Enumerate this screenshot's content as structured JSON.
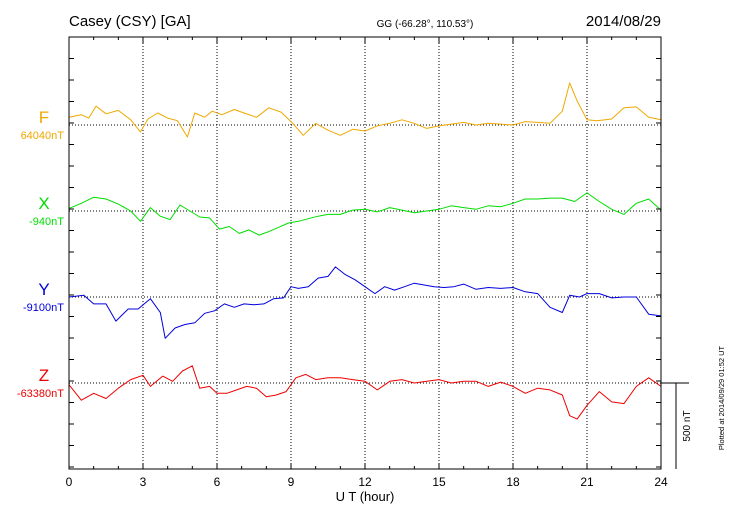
{
  "header": {
    "station": "Casey (CSY)  [GA]",
    "coords": "GG (-66.28°, 110.53°)",
    "date": "2014/08/29"
  },
  "footer": {
    "plotted": "Plotted at 2014/09/29 01:52 UT"
  },
  "chart_data": {
    "type": "line",
    "title": "Casey (CSY)  [GA]",
    "xlabel": "U T (hour)",
    "x_ticks": [
      "0",
      "3",
      "6",
      "9",
      "12",
      "15",
      "18",
      "21",
      "24"
    ],
    "xlim": [
      0,
      24
    ],
    "grid": true,
    "scale_bar": {
      "label": "500 nT",
      "nT": 500
    },
    "series": [
      {
        "name": "F",
        "baseline_label": "64040nT",
        "baseline_nT": 64040,
        "color": "#f0a800",
        "x": [
          0,
          0.5,
          0.8,
          1.1,
          1.5,
          2,
          2.5,
          2.9,
          3.2,
          3.6,
          4,
          4.4,
          4.8,
          5.1,
          5.5,
          5.8,
          6.2,
          6.7,
          7.1,
          7.6,
          8.1,
          8.6,
          9,
          9.5,
          10,
          10.5,
          11,
          11.5,
          12,
          12.5,
          13,
          13.5,
          14,
          14.5,
          15,
          15.5,
          16,
          16.5,
          17,
          17.5,
          18,
          18.5,
          19,
          19.5,
          20,
          20.3,
          20.6,
          21,
          21.4,
          22,
          22.5,
          23,
          23.5,
          24
        ],
        "values": [
          45,
          60,
          40,
          110,
          65,
          85,
          30,
          -40,
          35,
          70,
          40,
          25,
          -70,
          70,
          45,
          80,
          60,
          90,
          70,
          45,
          100,
          75,
          20,
          -60,
          10,
          -30,
          -60,
          -25,
          -35,
          -5,
          10,
          30,
          10,
          -20,
          -5,
          5,
          15,
          0,
          10,
          5,
          0,
          20,
          15,
          10,
          80,
          245,
          140,
          30,
          25,
          35,
          100,
          105,
          45,
          30
        ]
      },
      {
        "name": "X",
        "baseline_label": "-940nT",
        "baseline_nT": -940,
        "color": "#00dd00",
        "x": [
          0,
          0.5,
          1,
          1.5,
          2,
          2.5,
          2.9,
          3.3,
          3.7,
          4.1,
          4.5,
          4.9,
          5.3,
          5.7,
          6.1,
          6.5,
          6.9,
          7.3,
          7.7,
          8.1,
          8.5,
          8.9,
          9.3,
          9.7,
          10.1,
          10.5,
          11,
          11.5,
          12,
          12.5,
          13,
          13.5,
          14,
          14.5,
          15,
          15.5,
          16,
          16.5,
          17,
          17.5,
          18,
          18.5,
          19,
          19.5,
          20,
          20.5,
          21,
          21.5,
          22,
          22.5,
          23,
          23.5,
          24
        ],
        "values": [
          15,
          45,
          80,
          70,
          40,
          0,
          -60,
          20,
          -30,
          -50,
          35,
          0,
          -35,
          -40,
          -105,
          -90,
          -130,
          -110,
          -140,
          -120,
          -95,
          -70,
          -60,
          -45,
          -30,
          -20,
          -20,
          5,
          10,
          -5,
          20,
          5,
          -10,
          0,
          10,
          30,
          20,
          10,
          30,
          25,
          45,
          70,
          70,
          75,
          75,
          55,
          105,
          55,
          10,
          -20,
          45,
          70,
          5
        ]
      },
      {
        "name": "Y",
        "baseline_label": "-9100nT",
        "baseline_nT": -9100,
        "color": "#0000dd",
        "x": [
          0,
          0.6,
          1,
          1.5,
          1.9,
          2.4,
          2.8,
          3.3,
          3.7,
          3.9,
          4.3,
          4.7,
          5.1,
          5.5,
          5.9,
          6.3,
          6.7,
          7.1,
          7.5,
          7.9,
          8.3,
          8.7,
          9,
          9.3,
          9.7,
          10.1,
          10.5,
          10.8,
          11.2,
          11.6,
          12,
          12.4,
          12.8,
          13.2,
          13.6,
          14,
          14.4,
          14.8,
          15.2,
          15.6,
          16,
          16.5,
          17,
          17.5,
          18,
          18.5,
          19,
          19.5,
          20,
          20.3,
          20.7,
          21,
          21.5,
          22,
          22.5,
          23,
          23.5,
          24
        ],
        "values": [
          0,
          10,
          -40,
          -40,
          -140,
          -70,
          -70,
          -10,
          -90,
          -240,
          -180,
          -160,
          -150,
          -95,
          -80,
          -40,
          -60,
          -40,
          -45,
          -40,
          -10,
          -5,
          60,
          50,
          60,
          110,
          120,
          175,
          130,
          100,
          60,
          20,
          60,
          40,
          60,
          80,
          70,
          60,
          55,
          60,
          75,
          45,
          55,
          50,
          55,
          30,
          20,
          -60,
          -90,
          10,
          0,
          20,
          20,
          -5,
          0,
          0,
          -100,
          -110
        ]
      },
      {
        "name": "Z",
        "baseline_label": "-63380nT",
        "baseline_nT": -63380,
        "color": "#ee0000",
        "x": [
          0,
          0.5,
          1,
          1.5,
          2,
          2.5,
          3,
          3.3,
          3.8,
          4.2,
          4.6,
          5,
          5.3,
          5.7,
          6,
          6.4,
          6.8,
          7.2,
          7.6,
          8,
          8.4,
          8.8,
          9.2,
          9.6,
          10,
          10.5,
          11,
          11.5,
          12,
          12.5,
          13,
          13.5,
          14,
          14.5,
          15,
          15.5,
          16,
          16.5,
          17,
          17.5,
          18,
          18.5,
          19,
          19.5,
          20,
          20.3,
          20.6,
          21,
          21.5,
          22,
          22.5,
          23,
          23.5,
          24
        ],
        "values": [
          -10,
          -100,
          -60,
          -90,
          -30,
          20,
          45,
          -20,
          40,
          10,
          70,
          100,
          -30,
          -20,
          -60,
          -60,
          -40,
          -20,
          -30,
          -80,
          -70,
          -50,
          30,
          50,
          20,
          30,
          30,
          20,
          10,
          -40,
          10,
          20,
          0,
          10,
          20,
          0,
          10,
          10,
          -20,
          5,
          -20,
          -60,
          -30,
          -40,
          -70,
          -190,
          -210,
          -130,
          -50,
          -110,
          -120,
          -20,
          30,
          -20
        ]
      }
    ]
  }
}
